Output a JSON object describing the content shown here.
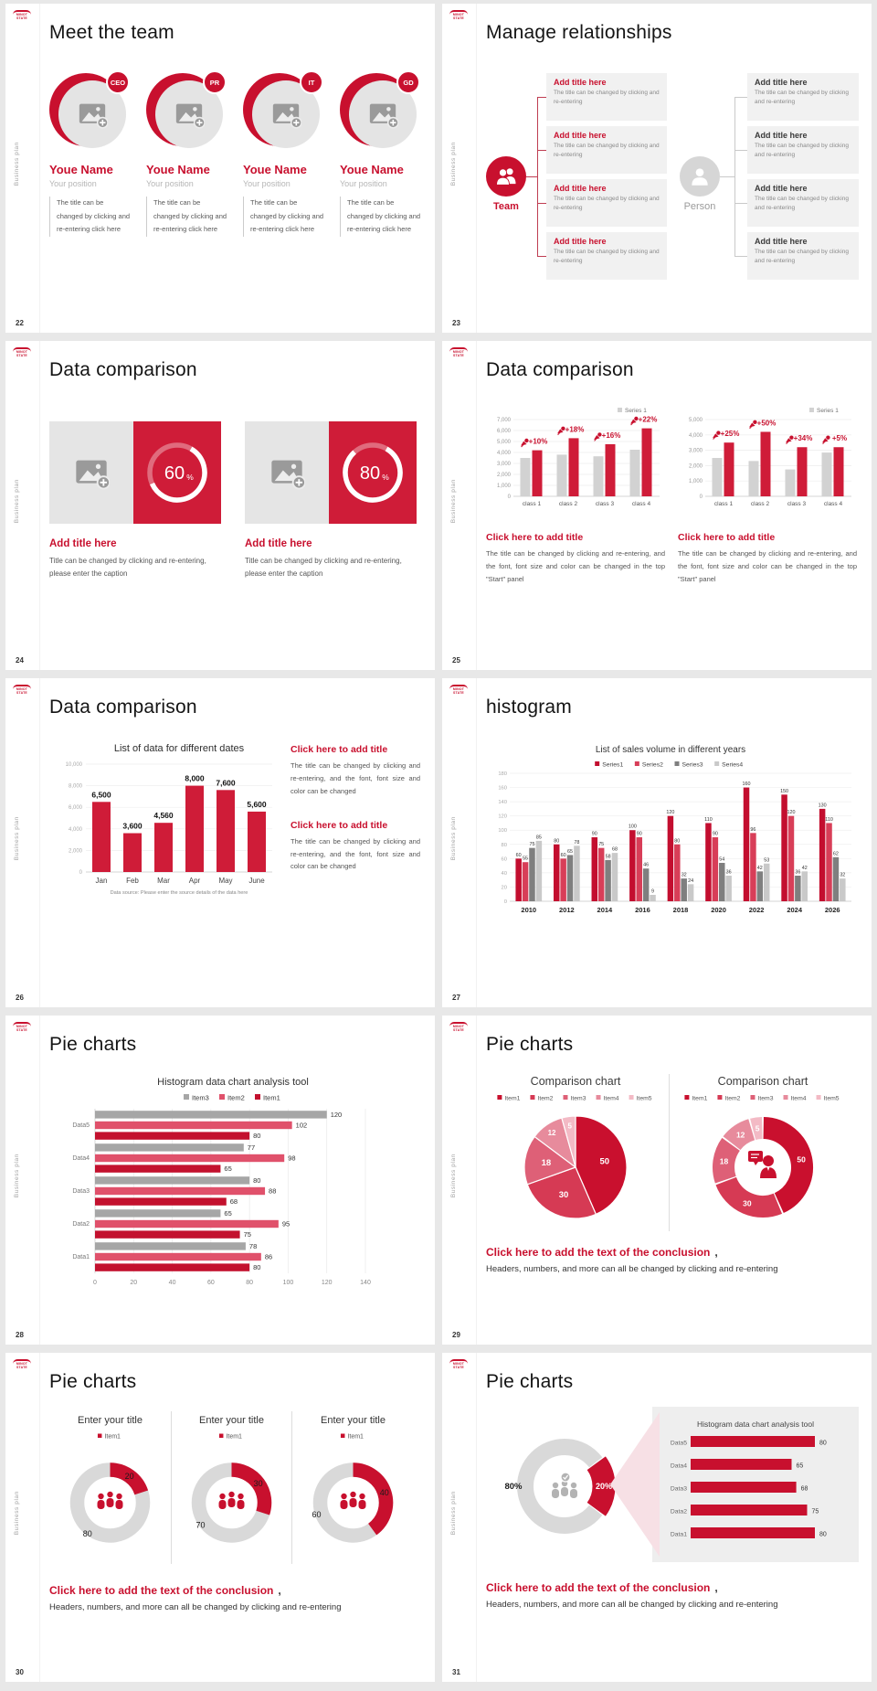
{
  "logo_text": "MINOT STATE",
  "sidebar_text": "Business plan",
  "colors": {
    "accent": "#c8102e",
    "bar_red": "#cf1c38",
    "bar_grey": "#d2d2d2",
    "dark_grey": "#7f7f7f",
    "light_grey": "#c9c9c9",
    "box_bg": "#f1f1f1"
  },
  "strings": {
    "add_title": "Add title here",
    "click_add_title": "Click here to add title",
    "change_font_panel": "The title can be changed by clicking and re-entering, and the font, font size and color can be changed in the top \"Start\" panel",
    "change_font": "The title can be changed by clicking and re-entering, and the font, font size and color can be changed",
    "conclusion_title": "Click here to add the text of the conclusion",
    "conclusion_comma": ",",
    "conclusion_body": "Headers, numbers, and more can all be changed by clicking and re-entering"
  },
  "slides": {
    "s22": {
      "page": "22",
      "title": "Meet the team",
      "members": [
        {
          "badge": "CEO",
          "name": "Youe Name",
          "position": "Your position",
          "desc": "The title can be changed by clicking and re-entering click here"
        },
        {
          "badge": "PR",
          "name": "Youe Name",
          "position": "Your position",
          "desc": "The title can be changed by clicking and re-entering click here"
        },
        {
          "badge": "IT",
          "name": "Youe Name",
          "position": "Your position",
          "desc": "The title can be changed by clicking and re-entering click here"
        },
        {
          "badge": "GD",
          "name": "Youe Name",
          "position": "Your position",
          "desc": "The title can be changed by clicking and re-entering click here"
        }
      ]
    },
    "s23": {
      "page": "23",
      "title": "Manage relationships",
      "team_label": "Team",
      "person_label": "Person",
      "box_title": "Add title here",
      "box_body": "The title can be changed by clicking and re-entering"
    },
    "s24": {
      "page": "24",
      "title": "Data comparison",
      "caption": "Title can be changed by clicking and re-entering, please enter the caption"
    },
    "s25": {
      "page": "25",
      "title": "Data comparison"
    },
    "s26": {
      "page": "26",
      "title": "Data comparison"
    },
    "s27": {
      "page": "27",
      "title": "histogram"
    },
    "s28": {
      "page": "28",
      "title": "Pie charts"
    },
    "s29": {
      "page": "29",
      "title": "Pie charts"
    },
    "s30": {
      "page": "30",
      "title": "Pie charts"
    },
    "s31": {
      "page": "31",
      "title": "Pie charts"
    }
  },
  "chart_data": [
    {
      "id": "s24",
      "type": "donut",
      "charts": [
        {
          "percent": 60
        },
        {
          "percent": 80
        }
      ],
      "ring_color": "#ffffff",
      "bg": "#cf1c38"
    },
    {
      "id": "s25a",
      "type": "bar",
      "legend": [
        "Series 1"
      ],
      "categories": [
        "class 1",
        "class 2",
        "class 3",
        "class 4"
      ],
      "series": [
        {
          "name": "Series 1",
          "color": "#d2d2d2",
          "values": [
            3500,
            3800,
            3650,
            4250
          ]
        },
        {
          "name": "highlight",
          "color": "#cf1c38",
          "values": [
            4200,
            5300,
            4750,
            6200
          ]
        }
      ],
      "deltas": [
        "+10%",
        "+18%",
        "+16%",
        "+22%"
      ],
      "ylim": [
        0,
        7000
      ],
      "ystep": 1000
    },
    {
      "id": "s25b",
      "type": "bar",
      "legend": [
        "Series 1"
      ],
      "categories": [
        "class 1",
        "class 2",
        "class 3",
        "class 4"
      ],
      "series": [
        {
          "name": "Series 1",
          "color": "#d2d2d2",
          "values": [
            2500,
            2300,
            1750,
            2850
          ]
        },
        {
          "name": "highlight",
          "color": "#cf1c38",
          "values": [
            3500,
            4200,
            3200,
            3200
          ]
        }
      ],
      "deltas": [
        "+25%",
        "+50%",
        "+34%",
        "+5%"
      ],
      "ylim": [
        0,
        5000
      ],
      "ystep": 1000
    },
    {
      "id": "s26",
      "type": "bar",
      "title": "List of data for different dates",
      "categories": [
        "Jan",
        "Feb",
        "Mar",
        "Apr",
        "May",
        "June"
      ],
      "values": [
        6500,
        3600,
        4560,
        8000,
        7600,
        5600
      ],
      "ylim": [
        0,
        10000
      ],
      "ystep": 2000,
      "color": "#cf1c38",
      "footnote": "Data source: Please enter the source details of the data here"
    },
    {
      "id": "s27",
      "type": "bar",
      "title": "List of sales volume in different years",
      "categories": [
        "2010",
        "2012",
        "2014",
        "2016",
        "2018",
        "2020",
        "2022",
        "2024",
        "2026"
      ],
      "series": [
        {
          "name": "Series1",
          "color": "#c30e2f",
          "values": [
            60,
            80,
            90,
            100,
            120,
            110,
            160,
            150,
            130
          ]
        },
        {
          "name": "Series2",
          "color": "#d83e58",
          "values": [
            55,
            60,
            75,
            90,
            80,
            90,
            96,
            120,
            110
          ]
        },
        {
          "name": "Series3",
          "color": "#7f7f7f",
          "values": [
            75,
            65,
            58,
            46,
            32,
            54,
            42,
            36,
            62
          ]
        },
        {
          "name": "Series4",
          "color": "#c9c9c9",
          "values": [
            85,
            78,
            68,
            9,
            24,
            36,
            53,
            42,
            32
          ]
        }
      ],
      "ylim": [
        0,
        180
      ],
      "ystep": 20
    },
    {
      "id": "s28",
      "type": "bar",
      "orientation": "horizontal",
      "title": "Histogram data chart analysis tool",
      "legend_order": [
        "Item3",
        "Item2",
        "Item1"
      ],
      "categories": [
        "Data1",
        "Data2",
        "Data3",
        "Data4",
        "Data5"
      ],
      "series": [
        {
          "name": "Item1",
          "color": "#c3112e",
          "values": [
            80,
            75,
            68,
            65,
            80
          ]
        },
        {
          "name": "Item2",
          "color": "#e0516b",
          "values": [
            86,
            95,
            88,
            98,
            102
          ]
        },
        {
          "name": "Item3",
          "color": "#a6a6a6",
          "values": [
            78,
            65,
            80,
            77,
            120
          ]
        }
      ],
      "xlim": [
        0,
        140
      ],
      "xstep": 20
    },
    {
      "id": "s29a",
      "type": "pie",
      "title": "Comparison chart",
      "legend": [
        "Item1",
        "Item2",
        "Item3",
        "Item4",
        "Item5"
      ],
      "values": [
        50,
        30,
        18,
        12,
        5
      ],
      "colors": [
        "#c9102e",
        "#d63a54",
        "#de6077",
        "#e78b9c",
        "#f3bac5"
      ]
    },
    {
      "id": "s29b",
      "type": "donut",
      "title": "Comparison chart",
      "legend": [
        "Item1",
        "Item2",
        "Item3",
        "Item4",
        "Item5"
      ],
      "values": [
        50,
        30,
        18,
        12,
        5
      ],
      "colors": [
        "#c9102e",
        "#d63a54",
        "#de6077",
        "#e78b9c",
        "#f3bac5"
      ],
      "center_icon": "businessman-icon"
    },
    {
      "id": "s30",
      "type": "donut",
      "titles": [
        "Enter your title",
        "Enter your title",
        "Enter your title"
      ],
      "legend": [
        "Item1"
      ],
      "charts": [
        {
          "value": 20,
          "rest": 80
        },
        {
          "value": 30,
          "rest": 70
        },
        {
          "value": 40,
          "rest": 60
        }
      ],
      "value_color": "#c8102e",
      "rest_color": "#d9d9d9",
      "center_icon": "people-group-icon"
    },
    {
      "id": "s31donut",
      "type": "donut",
      "segments": [
        {
          "label": "80%",
          "value": 80,
          "color": "#d9d9d9"
        },
        {
          "label": "20%",
          "value": 20,
          "color": "#c8102e"
        }
      ],
      "start_angle_deg": 54,
      "center_icon": "people-check-icon"
    },
    {
      "id": "s31bars",
      "type": "bar",
      "orientation": "horizontal",
      "title": "Histogram data chart analysis tool",
      "categories": [
        "Data1",
        "Data2",
        "Data3",
        "Data4",
        "Data5"
      ],
      "values": [
        80,
        75,
        68,
        65,
        80
      ],
      "color": "#c8102e"
    }
  ]
}
